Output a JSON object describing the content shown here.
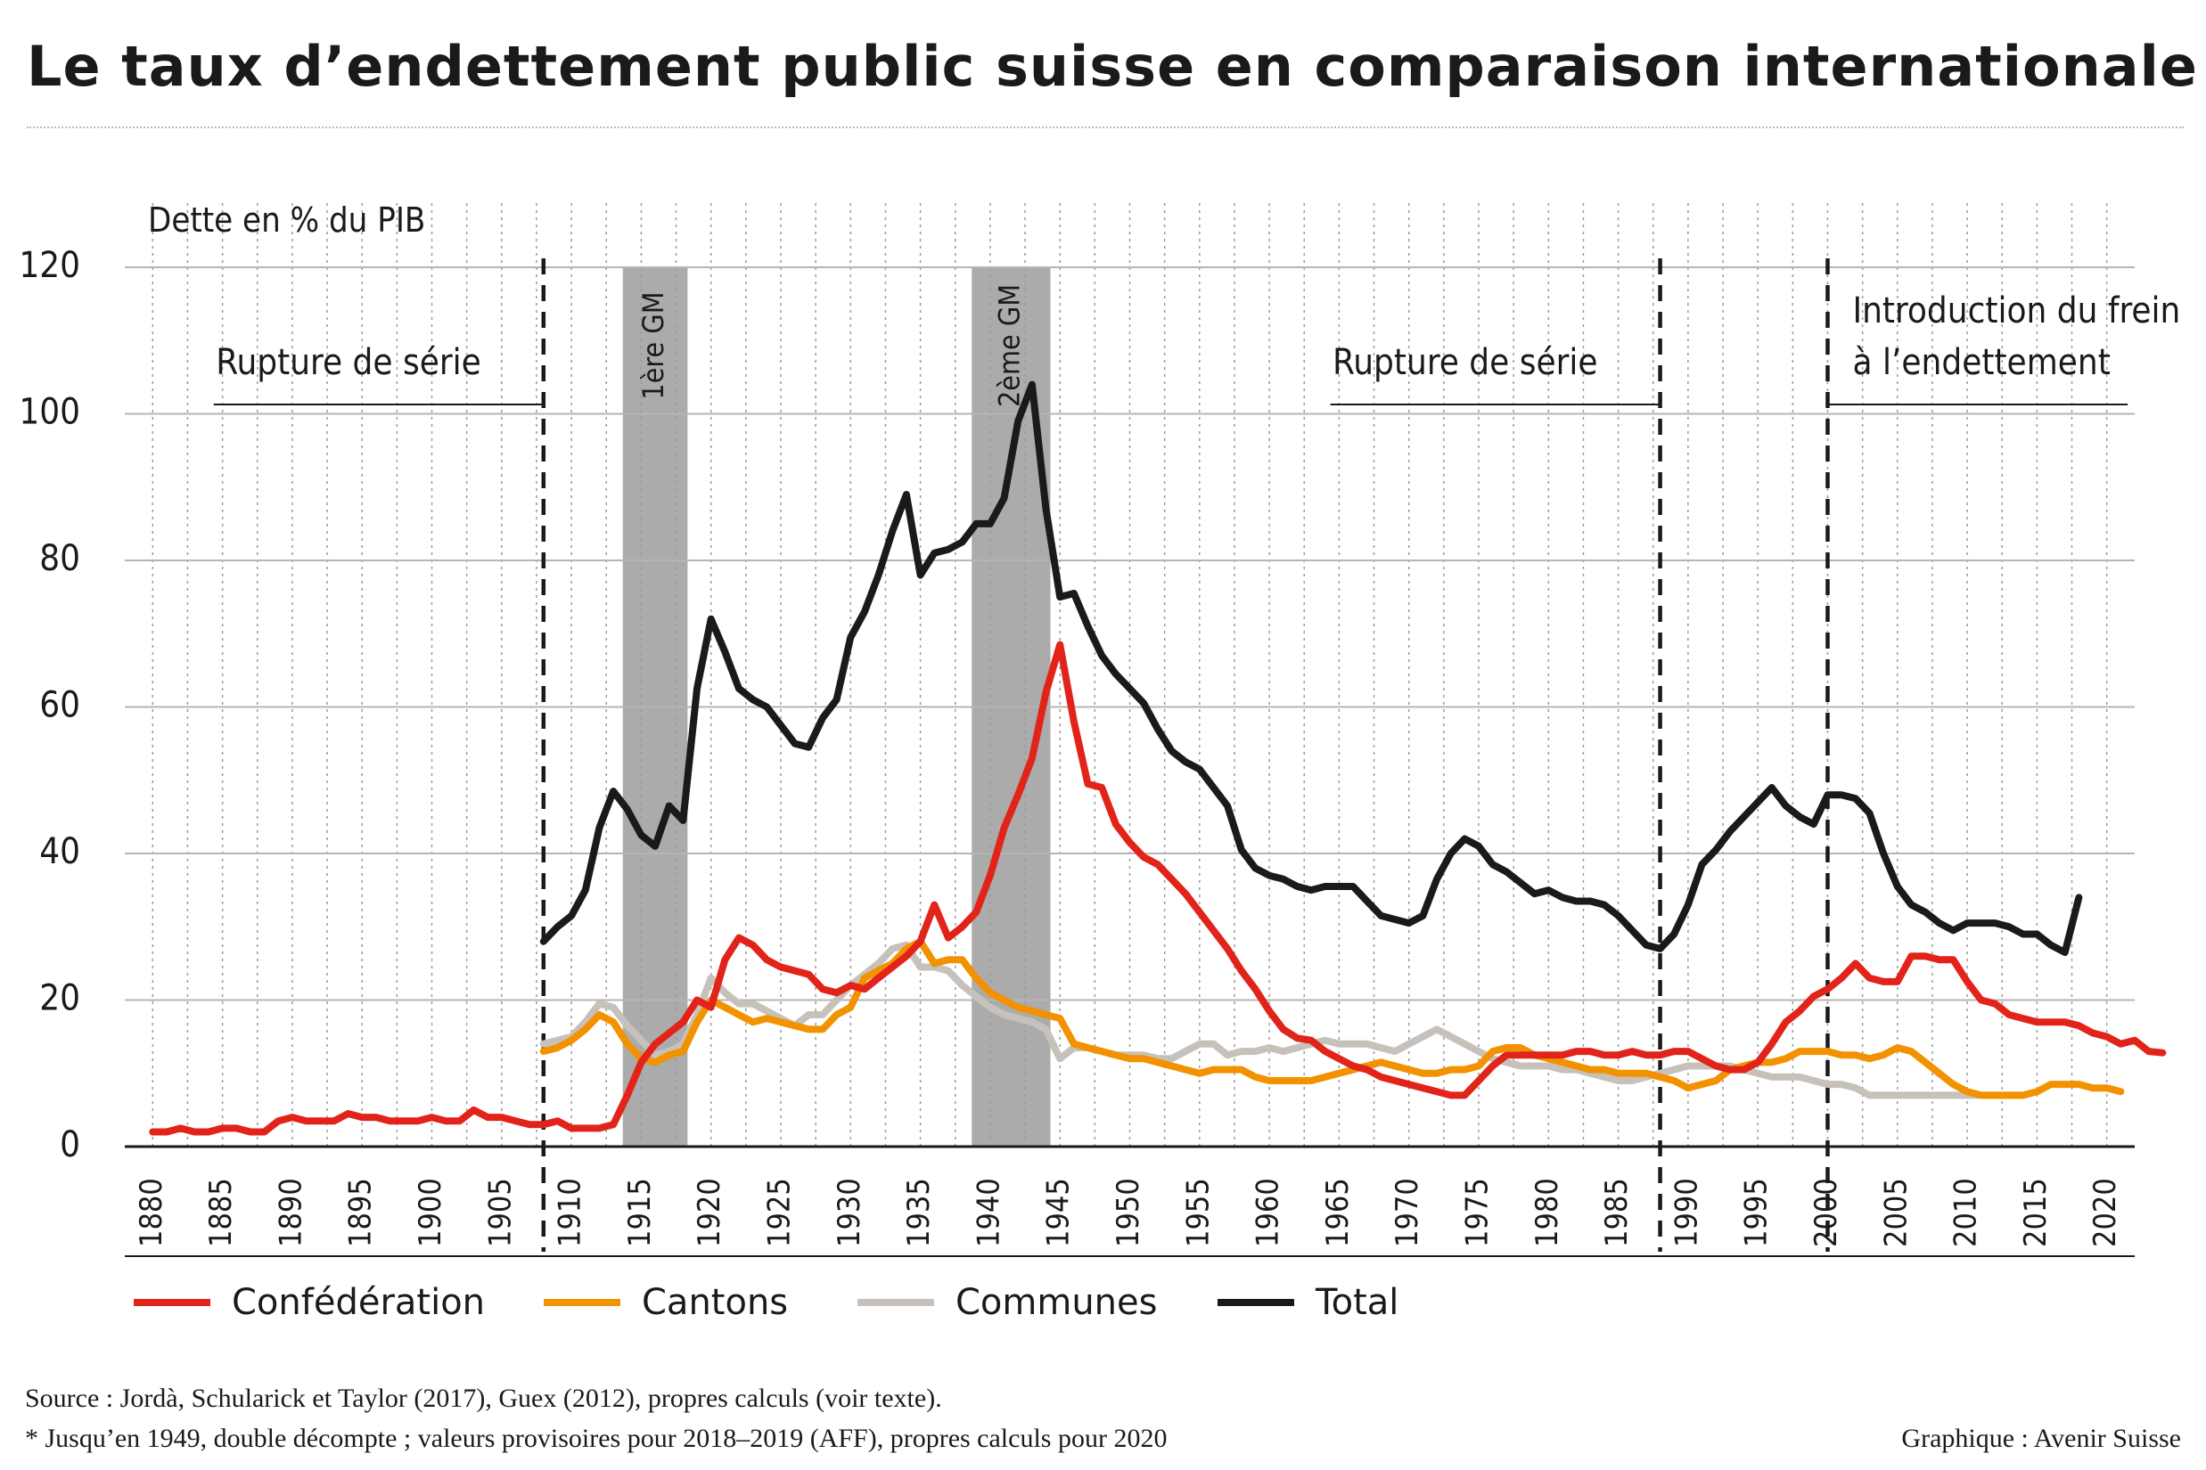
{
  "title": "Le taux d’endettement public suisse en comparaison internationale",
  "footer": {
    "source": "Source : Jordà, Schularick et Taylor (2017), Guex (2012), propres calculs (voir texte).",
    "note": "* Jusqu’en 1949, double décompte ; valeurs provisoires pour 2018–2019 (AFF), propres calculs pour 2020",
    "credit": "Graphique : Avenir Suisse"
  },
  "legend": [
    {
      "label": "Confédération",
      "color": "#e2231a"
    },
    {
      "label": "Cantons",
      "color": "#f39200"
    },
    {
      "label": "Communes",
      "color": "#c6c1bb"
    },
    {
      "label": "Total",
      "color": "#1a1a1a"
    }
  ],
  "chart_data": {
    "type": "line",
    "ylabel": "Dette en % du PIB",
    "xlim": [
      1878,
      2022
    ],
    "ylim": [
      0,
      120
    ],
    "yticks": [
      0,
      20,
      40,
      60,
      80,
      100,
      120
    ],
    "xticks": [
      1880,
      1885,
      1890,
      1895,
      1900,
      1905,
      1910,
      1915,
      1920,
      1925,
      1930,
      1935,
      1940,
      1945,
      1950,
      1955,
      1960,
      1965,
      1970,
      1975,
      1980,
      1985,
      1990,
      1995,
      2000,
      2005,
      2010,
      2015,
      2020
    ],
    "grid": true,
    "shaded_periods": [
      {
        "from": 1914,
        "to": 1918,
        "label": "1ère GM"
      },
      {
        "from": 1939,
        "to": 1944,
        "label": "2ème GM"
      }
    ],
    "markers": [
      {
        "year": 1908,
        "label": "Rupture de série",
        "label_lines": [
          "Rupture de série"
        ]
      },
      {
        "year": 1988,
        "label": "Rupture de série",
        "label_lines": [
          "Rupture de série"
        ]
      },
      {
        "year": 2000,
        "label": "Introduction du frein à l’endettement",
        "label_lines": [
          "Introduction du frein",
          "à l’endettement"
        ]
      }
    ],
    "series": [
      {
        "name": "Confédération",
        "color": "#e2231a",
        "start": 1880,
        "values": [
          2,
          2,
          2.5,
          2,
          2,
          2.5,
          2.5,
          2,
          2,
          3.5,
          4,
          3.5,
          3.5,
          3.5,
          4.5,
          4,
          4,
          3.5,
          3.5,
          3.5,
          4,
          3.5,
          3.5,
          5,
          4,
          4,
          3.5,
          3,
          3,
          3.5,
          2.5,
          2.5,
          2.5,
          3,
          7,
          11.5,
          14,
          15.5,
          17,
          20,
          19,
          25.5,
          28.5,
          27.5,
          25.5,
          24.5,
          24,
          23.5,
          21.5,
          21,
          22,
          21.5,
          23,
          24.5,
          26,
          28,
          33,
          28.5,
          30,
          32,
          37,
          43.5,
          48,
          53,
          62,
          68.5,
          58,
          49.5,
          49,
          44,
          41.5,
          39.5,
          38.5,
          36.5,
          34.5,
          32,
          29.5,
          27,
          24,
          21.5,
          18.5,
          16,
          14.8,
          14.5,
          13,
          12,
          11,
          10.5,
          9.5,
          9,
          8.5,
          8,
          7.5,
          7,
          7,
          9,
          11,
          12.5,
          12.5,
          12.5,
          12.5,
          12.5,
          13,
          13,
          12.5,
          12.5,
          13,
          12.5,
          12.5,
          13,
          13,
          12,
          11,
          10.5,
          10.5,
          11.5,
          14,
          17,
          18.5,
          20.5,
          21.5,
          23,
          25,
          23,
          22.5,
          22.5,
          26,
          26,
          25.5,
          25.5,
          22.5,
          20,
          19.5,
          18,
          17.5,
          17,
          17,
          17,
          16.5,
          15.5,
          15,
          14,
          14.5,
          13,
          12.8
        ]
      },
      {
        "name": "Cantons",
        "color": "#f39200",
        "start": 1908,
        "values": [
          13,
          13.5,
          14.5,
          16,
          18,
          17,
          14,
          12,
          11.5,
          12.5,
          13,
          17,
          20,
          19,
          18,
          17,
          17.5,
          17,
          16.5,
          16,
          16,
          18,
          19,
          23,
          24,
          25,
          27,
          28,
          25,
          25.5,
          25.5,
          23,
          21,
          20,
          19,
          18.5,
          18,
          17.5,
          14,
          13.5,
          13,
          12.5,
          12,
          12,
          11.5,
          11,
          10.5,
          10,
          10.5,
          10.5,
          10.5,
          9.5,
          9,
          9,
          9,
          9,
          9.5,
          10,
          10.5,
          11,
          11.5,
          11,
          10.5,
          10,
          10,
          10.5,
          10.5,
          11,
          13,
          13.5,
          13.5,
          12.5,
          12,
          11.5,
          11,
          10.5,
          10.5,
          10,
          10,
          10,
          9.5,
          9,
          8,
          8.5,
          9,
          10.5,
          11,
          11.5,
          11.5,
          12,
          13,
          13,
          13,
          12.5,
          12.5,
          12,
          12.5,
          13.5,
          13,
          11.5,
          10,
          8.5,
          7.5,
          7,
          7,
          7,
          7,
          7.5,
          8.5,
          8.5,
          8.5,
          8,
          8,
          7.5
        ]
      },
      {
        "name": "Communes",
        "color": "#c6c1bb",
        "start": 1908,
        "values": [
          14,
          14.5,
          15,
          17,
          19.5,
          19,
          16.5,
          14.5,
          12.5,
          13,
          14,
          18,
          23,
          21,
          19.5,
          19.5,
          18.5,
          17.5,
          16.5,
          18,
          18,
          20,
          22,
          23.5,
          25,
          27,
          27.5,
          24.5,
          24.5,
          24,
          22,
          20.5,
          19,
          18,
          17.5,
          17,
          16,
          12,
          13.5,
          13.5,
          13,
          12.5,
          12.5,
          12.5,
          12,
          12,
          13,
          14,
          14,
          12.5,
          13,
          13,
          13.5,
          13,
          13.5,
          14,
          14.5,
          14,
          14,
          14,
          13.5,
          13,
          14,
          15,
          16,
          15,
          14,
          13,
          12,
          11.5,
          11,
          11,
          11,
          10.5,
          10.5,
          10,
          9.5,
          9,
          9,
          9.5,
          10,
          10.5,
          11,
          11,
          11,
          11,
          10.5,
          10,
          9.5,
          9.5,
          9.5,
          9,
          8.5,
          8.5,
          8,
          7,
          7,
          7,
          7,
          7,
          7,
          7,
          7,
          7,
          7,
          7,
          7
        ]
      },
      {
        "name": "Total",
        "color": "#1a1a1a",
        "start": 1908,
        "values": [
          28,
          30,
          31.5,
          35,
          43.5,
          48.5,
          46,
          42.5,
          41,
          46.5,
          44.5,
          62.5,
          72,
          67.5,
          62.5,
          61,
          60,
          57.5,
          55,
          54.5,
          58.5,
          61,
          69.5,
          73,
          78,
          84,
          89,
          78,
          81,
          81.5,
          82.5,
          85,
          85,
          88.5,
          99,
          104,
          87,
          75,
          75.5,
          71,
          67,
          64.5,
          62.5,
          60.5,
          57,
          54,
          52.5,
          51.5,
          49,
          46.5,
          40.5,
          38,
          37,
          36.5,
          35.5,
          35,
          35.5,
          35.5,
          35.5,
          33.5,
          31.5,
          31,
          30.5,
          31.5,
          36.5,
          40,
          42,
          41,
          38.5,
          37.5,
          36,
          34.5,
          35,
          34,
          33.5,
          33.5,
          33,
          31.5,
          29.5,
          27.5,
          27,
          29,
          33,
          38.5,
          40.5,
          43,
          45,
          47,
          49,
          46.5,
          45,
          44,
          48,
          48,
          47.5,
          45.5,
          40,
          35.5,
          33,
          32,
          30.5,
          29.5,
          30.5,
          30.5,
          30.5,
          30,
          29,
          29,
          27.5,
          26.5,
          34
        ]
      }
    ]
  }
}
